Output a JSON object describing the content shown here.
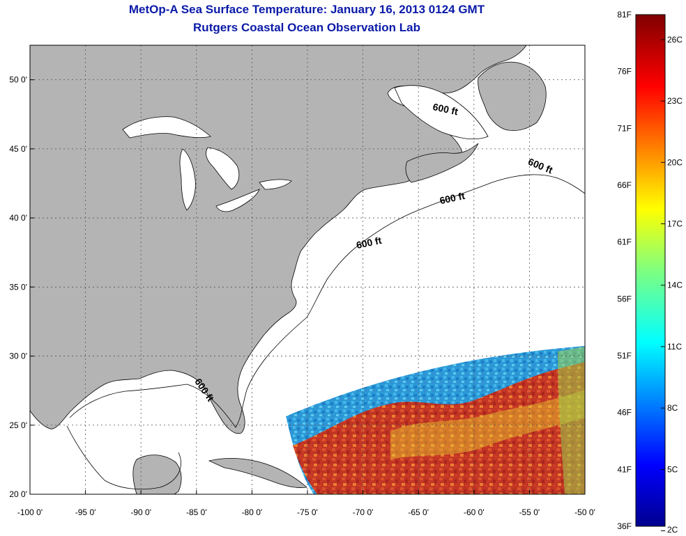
{
  "title": "MetOp-A Sea Surface Temperature:  January 16, 2013 0124 GMT",
  "subtitle": "Rutgers Coastal Ocean Observation Lab",
  "map": {
    "lon_range": [
      -100,
      -50
    ],
    "lat_range": [
      20,
      52.5
    ],
    "lon_ticks": [
      "-100 0'",
      "-95 0'",
      "-90 0'",
      "-85 0'",
      "-80 0'",
      "-75 0'",
      "-70 0'",
      "-65 0'",
      "-60 0'",
      "-55 0'",
      "-50 0'"
    ],
    "lat_ticks": [
      "20 0'",
      "25 0'",
      "30 0'",
      "35 0'",
      "40 0'",
      "45 0'",
      "50 0'"
    ],
    "lat_tick_values": [
      20,
      25,
      30,
      35,
      40,
      45,
      50
    ],
    "land_color": "#b4b4b4",
    "ocean_color": "#ffffff",
    "grid": true,
    "depth_contour_label": "600 ft",
    "depth_labels": [
      "600 ft",
      "600 ft",
      "600 ft",
      "600 ft",
      "600 ft"
    ]
  },
  "colorbar": {
    "fahrenheit": [
      "81F",
      "76F",
      "71F",
      "66F",
      "61F",
      "56F",
      "51F",
      "46F",
      "41F",
      "36F"
    ],
    "fahrenheit_values": [
      81,
      76,
      71,
      66,
      61,
      56,
      51,
      46,
      41,
      36
    ],
    "celsius": [
      "26C",
      "23C",
      "20C",
      "17C",
      "14C",
      "11C",
      "8C",
      "5C",
      "2C"
    ],
    "celsius_values": [
      26,
      23,
      20,
      17,
      14,
      11,
      8,
      5,
      2
    ],
    "range_f": [
      36,
      81
    ],
    "colormap": "jet"
  }
}
